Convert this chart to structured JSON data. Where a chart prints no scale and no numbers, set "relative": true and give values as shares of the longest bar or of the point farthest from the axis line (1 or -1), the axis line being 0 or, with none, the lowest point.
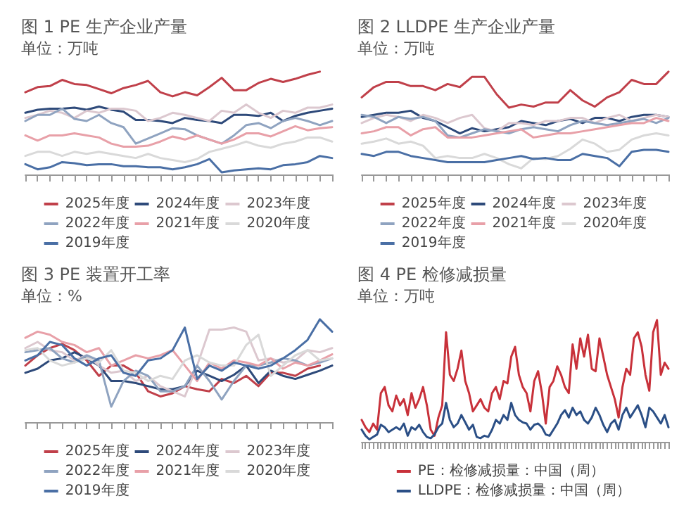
{
  "chart_data": [
    {
      "type": "line",
      "title": "图 1 PE 生产企业产量",
      "subtitle": "单位：万吨",
      "relative": true,
      "legend": "bottom",
      "marker": "none",
      "line_style": "solid",
      "categories": [
        null,
        null,
        null,
        null,
        null,
        null,
        null,
        null,
        null,
        null,
        null,
        null,
        null,
        null,
        null,
        null,
        null,
        null,
        null,
        null,
        null,
        null,
        null,
        null,
        null,
        null
      ],
      "series": [
        {
          "name": "2025年度",
          "color": "#c0404a",
          "values": [
            0.8,
            0.85,
            0.86,
            0.92,
            0.88,
            0.87,
            0.83,
            0.79,
            0.84,
            0.87,
            0.91,
            0.8,
            0.76,
            0.8,
            0.77,
            0.85,
            0.94,
            0.82,
            0.82,
            0.89,
            0.93,
            0.9,
            0.93,
            0.97,
            1.0,
            null
          ]
        },
        {
          "name": "2024年度",
          "color": "#2e4a7a",
          "values": [
            0.6,
            0.63,
            0.64,
            0.64,
            0.65,
            0.63,
            0.66,
            0.63,
            0.61,
            0.53,
            0.53,
            0.52,
            0.5,
            0.55,
            0.53,
            0.52,
            0.5,
            0.58,
            0.58,
            0.57,
            0.6,
            0.52,
            0.57,
            0.6,
            0.62,
            0.64
          ]
        },
        {
          "name": "2023年度",
          "color": "#dcc8cf",
          "values": [
            0.55,
            0.58,
            0.62,
            0.6,
            0.55,
            0.62,
            0.6,
            0.64,
            0.64,
            0.62,
            0.52,
            0.55,
            0.6,
            0.58,
            0.55,
            0.52,
            0.62,
            0.6,
            0.68,
            0.6,
            0.55,
            0.62,
            0.6,
            0.65,
            0.65,
            0.68
          ]
        },
        {
          "name": "2022年度",
          "color": "#8fa3c0",
          "values": [
            0.52,
            0.58,
            0.58,
            0.64,
            0.54,
            0.52,
            0.58,
            0.5,
            0.46,
            0.3,
            0.35,
            0.4,
            0.45,
            0.44,
            0.38,
            0.34,
            0.3,
            0.38,
            0.48,
            0.5,
            0.45,
            0.52,
            0.55,
            0.52,
            0.48,
            0.52
          ]
        },
        {
          "name": "2021年度",
          "color": "#e8a0a8",
          "values": [
            0.38,
            0.33,
            0.38,
            0.38,
            0.4,
            0.38,
            0.36,
            0.3,
            0.27,
            0.27,
            0.28,
            0.32,
            0.37,
            0.34,
            0.38,
            0.34,
            0.3,
            0.34,
            0.4,
            0.4,
            0.37,
            0.42,
            0.47,
            0.43,
            0.45,
            0.46
          ]
        },
        {
          "name": "2020年度",
          "color": "#d9d9d9",
          "values": [
            0.18,
            0.22,
            0.22,
            0.18,
            0.22,
            0.2,
            0.22,
            0.2,
            0.18,
            0.16,
            0.2,
            0.16,
            0.14,
            0.12,
            0.15,
            0.22,
            0.25,
            0.28,
            0.32,
            0.28,
            0.26,
            0.3,
            0.32,
            0.36,
            0.36,
            0.32
          ]
        },
        {
          "name": "2019年度",
          "color": "#4a6fa5",
          "values": [
            0.1,
            0.05,
            0.07,
            0.12,
            0.11,
            0.09,
            0.1,
            0.1,
            0.08,
            0.08,
            0.07,
            0.07,
            0.05,
            0.07,
            0.1,
            0.15,
            0.02,
            0.04,
            0.05,
            0.06,
            0.05,
            0.09,
            0.1,
            0.12,
            0.18,
            0.16
          ]
        }
      ]
    },
    {
      "type": "line",
      "title": "图 2 LLDPE 生产企业产量",
      "subtitle": "单位：万吨",
      "relative": true,
      "legend": "bottom",
      "marker": "none",
      "line_style": "solid",
      "categories": [
        null,
        null,
        null,
        null,
        null,
        null,
        null,
        null,
        null,
        null,
        null,
        null,
        null,
        null,
        null,
        null,
        null,
        null,
        null,
        null,
        null,
        null,
        null,
        null,
        null,
        null
      ],
      "series": [
        {
          "name": "2025年度",
          "color": "#c0404a",
          "values": [
            0.75,
            0.85,
            0.9,
            0.9,
            0.86,
            0.86,
            0.82,
            0.88,
            0.85,
            0.95,
            0.95,
            0.78,
            0.65,
            0.68,
            0.66,
            0.7,
            0.7,
            0.82,
            0.72,
            0.66,
            0.75,
            0.8,
            0.92,
            0.88,
            0.88,
            1.0
          ]
        },
        {
          "name": "2024年度",
          "color": "#2e4a7a",
          "values": [
            0.56,
            0.58,
            0.6,
            0.6,
            0.62,
            0.55,
            0.52,
            0.46,
            0.4,
            0.45,
            0.42,
            0.44,
            0.46,
            0.52,
            0.5,
            0.48,
            0.52,
            0.54,
            0.5,
            0.55,
            0.55,
            0.52,
            0.56,
            0.58,
            0.58,
            0.56
          ]
        },
        {
          "name": "2023年度",
          "color": "#dcc8cf",
          "values": [
            0.5,
            0.55,
            0.58,
            0.56,
            0.52,
            0.58,
            0.55,
            0.5,
            0.55,
            0.58,
            0.45,
            0.42,
            0.5,
            0.5,
            0.48,
            0.52,
            0.52,
            0.55,
            0.55,
            0.5,
            0.55,
            0.58,
            0.52,
            0.55,
            0.58,
            0.56
          ]
        },
        {
          "name": "2022年度",
          "color": "#8fa3c0",
          "values": [
            0.58,
            0.56,
            0.5,
            0.56,
            0.54,
            0.56,
            0.52,
            0.38,
            0.36,
            0.4,
            0.44,
            0.42,
            0.4,
            0.44,
            0.46,
            0.44,
            0.42,
            0.48,
            0.52,
            0.5,
            0.48,
            0.5,
            0.52,
            0.54,
            0.5,
            0.55
          ]
        },
        {
          "name": "2021年度",
          "color": "#e8a0a8",
          "values": [
            0.4,
            0.42,
            0.46,
            0.46,
            0.38,
            0.44,
            0.46,
            0.36,
            0.36,
            0.36,
            0.38,
            0.4,
            0.42,
            0.44,
            0.36,
            0.38,
            0.4,
            0.4,
            0.42,
            0.44,
            0.46,
            0.48,
            0.5,
            0.5,
            0.55,
            0.52
          ]
        },
        {
          "name": "2020年度",
          "color": "#d9d9d9",
          "values": [
            0.3,
            0.32,
            0.35,
            0.3,
            0.32,
            0.28,
            0.16,
            0.18,
            0.16,
            0.16,
            0.2,
            0.16,
            0.1,
            0.06,
            0.16,
            0.15,
            0.18,
            0.25,
            0.34,
            0.3,
            0.22,
            0.24,
            0.34,
            0.38,
            0.4,
            0.38
          ]
        },
        {
          "name": "2019年度",
          "color": "#4a6fa5",
          "values": [
            0.2,
            0.18,
            0.22,
            0.22,
            0.18,
            0.16,
            0.14,
            0.12,
            0.12,
            0.12,
            0.12,
            0.14,
            0.16,
            0.18,
            0.15,
            0.16,
            0.14,
            0.14,
            0.2,
            0.18,
            0.16,
            0.08,
            0.22,
            0.24,
            0.24,
            0.22
          ]
        }
      ]
    },
    {
      "type": "line",
      "title": "图 3 PE 装置开工率",
      "subtitle": "单位：%",
      "relative": true,
      "legend": "bottom",
      "marker": "none",
      "line_style": "solid",
      "categories": [
        null,
        null,
        null,
        null,
        null,
        null,
        null,
        null,
        null,
        null,
        null,
        null,
        null,
        null,
        null,
        null,
        null,
        null,
        null,
        null,
        null,
        null,
        null,
        null,
        null,
        null
      ],
      "series": [
        {
          "name": "2025年度",
          "color": "#c0404a",
          "values": [
            0.55,
            0.65,
            0.72,
            0.76,
            0.7,
            0.6,
            0.45,
            0.55,
            0.55,
            0.48,
            0.3,
            0.25,
            0.28,
            0.35,
            0.32,
            0.3,
            0.42,
            0.38,
            0.45,
            0.35,
            0.48,
            0.48,
            0.45,
            0.52,
            0.55,
            null
          ]
        },
        {
          "name": "2024年度",
          "color": "#2e4a7a",
          "values": [
            0.48,
            0.52,
            0.6,
            0.62,
            0.68,
            0.62,
            0.55,
            0.4,
            0.4,
            0.38,
            0.35,
            0.32,
            0.32,
            0.35,
            0.5,
            0.45,
            0.4,
            0.46,
            0.55,
            0.38,
            0.5,
            0.45,
            0.42,
            0.46,
            0.5,
            0.55
          ]
        },
        {
          "name": "2023年度",
          "color": "#dcc8cf",
          "values": [
            0.72,
            0.78,
            0.7,
            0.68,
            0.6,
            0.65,
            0.55,
            0.48,
            0.5,
            0.4,
            0.45,
            0.35,
            0.3,
            0.25,
            0.55,
            0.9,
            0.9,
            0.92,
            0.88,
            0.6,
            0.62,
            0.58,
            0.6,
            0.7,
            0.68,
            0.72
          ]
        },
        {
          "name": "2022年度",
          "color": "#8fa3c0",
          "values": [
            0.68,
            0.7,
            0.72,
            0.62,
            0.58,
            0.65,
            0.6,
            0.15,
            0.4,
            0.5,
            0.45,
            0.3,
            0.3,
            0.35,
            0.55,
            0.4,
            0.22,
            0.4,
            0.55,
            0.55,
            0.58,
            0.62,
            0.6,
            0.55,
            0.58,
            0.62
          ]
        },
        {
          "name": "2021年度",
          "color": "#e8a0a8",
          "values": [
            0.82,
            0.88,
            0.85,
            0.78,
            0.75,
            0.68,
            0.72,
            0.55,
            0.6,
            0.65,
            0.62,
            0.65,
            0.7,
            0.55,
            0.4,
            0.58,
            0.52,
            0.6,
            0.58,
            0.55,
            0.62,
            0.52,
            0.58,
            0.55,
            0.6,
            0.66
          ]
        },
        {
          "name": "2020年度",
          "color": "#d9d9d9",
          "values": [
            0.7,
            0.72,
            0.6,
            0.55,
            0.58,
            0.62,
            0.58,
            0.7,
            0.5,
            0.48,
            0.4,
            0.45,
            0.42,
            0.6,
            0.65,
            0.58,
            0.55,
            0.55,
            0.75,
            0.85,
            0.45,
            0.55,
            0.65,
            0.7,
            0.6,
            0.62
          ]
        },
        {
          "name": "2019年度",
          "color": "#4a6fa5",
          "values": [
            0.6,
            0.65,
            0.78,
            0.75,
            0.62,
            0.55,
            0.62,
            0.65,
            0.48,
            0.45,
            0.6,
            0.62,
            0.7,
            0.92,
            0.42,
            0.55,
            0.5,
            0.58,
            0.55,
            0.52,
            0.55,
            0.62,
            0.7,
            0.8,
            1.0,
            0.88
          ]
        }
      ]
    },
    {
      "type": "line",
      "title": "图 4 PE 检修减损量",
      "subtitle": "单位：万吨",
      "relative": true,
      "legend": "bottom",
      "marker": "none",
      "line_style": "solid",
      "categories": [
        null,
        null,
        null,
        null,
        null,
        null,
        null,
        null,
        null,
        null,
        null,
        null,
        null,
        null,
        null,
        null,
        null,
        null,
        null,
        null,
        null,
        null,
        null,
        null,
        null,
        null,
        null,
        null,
        null,
        null,
        null,
        null,
        null,
        null,
        null,
        null,
        null,
        null,
        null,
        null,
        null,
        null,
        null,
        null,
        null,
        null,
        null,
        null,
        null,
        null,
        null,
        null,
        null,
        null,
        null,
        null,
        null,
        null,
        null,
        null,
        null,
        null,
        null,
        null,
        null,
        null,
        null,
        null,
        null,
        null,
        null,
        null,
        null,
        null,
        null,
        null,
        null,
        null,
        null,
        null,
        null
      ],
      "series": [
        {
          "name": "PE：检修减损量：中国（周）",
          "color": "#c8313a",
          "values": [
            0.18,
            0.12,
            0.08,
            0.15,
            0.1,
            0.4,
            0.45,
            0.3,
            0.25,
            0.38,
            0.3,
            0.35,
            0.22,
            0.4,
            0.28,
            0.35,
            0.45,
            0.3,
            0.1,
            0.05,
            0.2,
            0.3,
            0.9,
            0.55,
            0.5,
            0.6,
            0.75,
            0.5,
            0.4,
            0.25,
            0.3,
            0.35,
            0.28,
            0.25,
            0.4,
            0.45,
            0.35,
            0.5,
            0.48,
            0.7,
            0.78,
            0.55,
            0.45,
            0.4,
            0.25,
            0.5,
            0.58,
            0.4,
            0.15,
            0.45,
            0.5,
            0.62,
            0.55,
            0.45,
            0.4,
            0.8,
            0.6,
            0.85,
            0.7,
            0.88,
            0.6,
            0.58,
            0.85,
            0.7,
            0.55,
            0.45,
            0.35,
            0.2,
            0.45,
            0.6,
            0.55,
            0.85,
            0.9,
            0.78,
            0.55,
            0.42,
            0.9,
            1.0,
            0.55,
            0.65,
            0.6
          ]
        },
        {
          "name": "LLDPE：检修减损量：中国（周）",
          "color": "#2b4f86",
          "values": [
            0.1,
            0.05,
            0.02,
            0.04,
            0.06,
            0.14,
            0.12,
            0.08,
            0.1,
            0.12,
            0.1,
            0.15,
            0.05,
            0.12,
            0.1,
            0.14,
            0.08,
            0.04,
            0.03,
            0.06,
            0.12,
            0.15,
            0.32,
            0.18,
            0.12,
            0.15,
            0.22,
            0.16,
            0.1,
            0.14,
            0.04,
            0.03,
            0.05,
            0.04,
            0.1,
            0.18,
            0.15,
            0.22,
            0.18,
            0.32,
            0.22,
            0.18,
            0.16,
            0.15,
            0.1,
            0.14,
            0.15,
            0.12,
            0.06,
            0.05,
            0.1,
            0.15,
            0.22,
            0.26,
            0.2,
            0.28,
            0.22,
            0.25,
            0.18,
            0.15,
            0.2,
            0.28,
            0.22,
            0.14,
            0.08,
            0.15,
            0.18,
            0.1,
            0.22,
            0.28,
            0.2,
            0.25,
            0.3,
            0.22,
            0.12,
            0.28,
            0.25,
            0.2,
            0.15,
            0.22,
            0.12
          ]
        }
      ]
    }
  ]
}
